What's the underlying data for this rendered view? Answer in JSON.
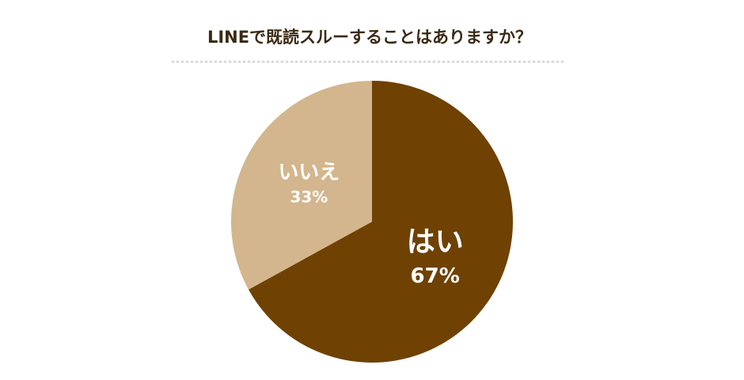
{
  "chart_data": {
    "type": "pie",
    "title": "LINEで既読スルーすることはありますか？",
    "categories": [
      "はい",
      "いいえ"
    ],
    "values": [
      67,
      33
    ],
    "value_labels": [
      "67%",
      "33%"
    ],
    "colors": [
      "#6f4102",
      "#d3b68e"
    ]
  }
}
